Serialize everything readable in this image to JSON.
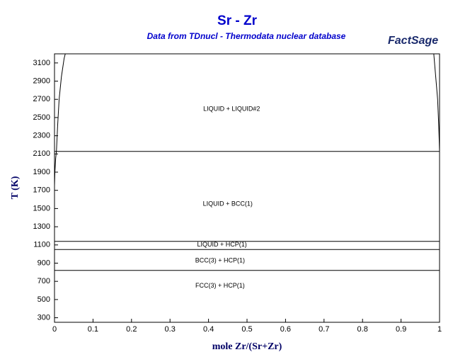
{
  "chart_data": {
    "type": "line",
    "title": "Sr - Zr",
    "subtitle": "Data from TDnucl - Thermodata nuclear database",
    "logo": "FactSage",
    "xlabel": "mole Zr/(Sr+Zr)",
    "ylabel": "T (K)",
    "xlim": [
      0,
      1
    ],
    "xticks": [
      0,
      0.1,
      0.2,
      0.3,
      0.4,
      0.5,
      0.6,
      0.7,
      0.8,
      0.9,
      1
    ],
    "ylim": [
      250,
      3200
    ],
    "yticks": [
      300,
      500,
      700,
      900,
      1100,
      1300,
      1500,
      1700,
      1900,
      2100,
      2300,
      2500,
      2700,
      2900,
      3100
    ],
    "color": "#000000",
    "lines": [
      {
        "x": [
          0,
          0.001,
          0.003,
          0.005,
          0.008,
          0.012,
          0.018,
          0.025,
          0.028
        ],
        "y": [
          1750,
          1900,
          2050,
          2128,
          2400,
          2700,
          2950,
          3150,
          3200
        ]
      },
      {
        "x": [
          1,
          0.998,
          0.995,
          0.99,
          0.985
        ],
        "y": [
          2128,
          2400,
          2700,
          2950,
          3200
        ]
      },
      {
        "x": [
          0,
          1
        ],
        "y": [
          2128,
          2128
        ]
      },
      {
        "x": [
          0,
          1
        ],
        "y": [
          1139,
          1139
        ]
      },
      {
        "x": [
          0,
          1
        ],
        "y": [
          1050,
          1050
        ]
      },
      {
        "x": [
          0,
          1
        ],
        "y": [
          820,
          820
        ]
      }
    ],
    "annotations": [
      "LIQUID + LIQUID#2",
      "LIQUID + BCC(1)",
      "LIQUID + HCP(1)",
      "BCC(3) + HCP(1)",
      "FCC(3) + HCP(1)"
    ]
  }
}
